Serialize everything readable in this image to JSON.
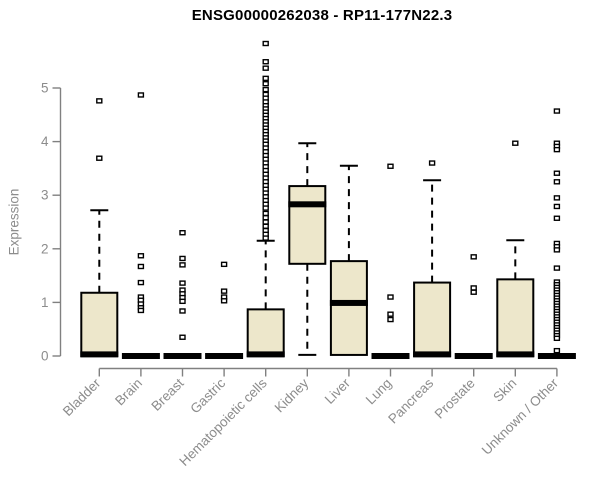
{
  "chart_data": {
    "type": "boxplot",
    "title": "ENSG00000262038 - RP11-177N22.3",
    "ylabel": "Expression",
    "yticks": [
      0,
      1,
      2,
      3,
      4,
      5
    ],
    "ylim": [
      0,
      5.9
    ],
    "grid": false,
    "legend": "none",
    "categories": [
      "Bladder",
      "Brain",
      "Breast",
      "Gastric",
      "Hematopoietic cells",
      "Kidney",
      "Liver",
      "Lung",
      "Pancreas",
      "Prostate",
      "Skin",
      "Unknown / Other"
    ],
    "boxes": [
      {
        "category": "Bladder",
        "whisker_low": 0,
        "q1": 0,
        "median": 0.03,
        "q3": 1.18,
        "whisker_high": 2.72,
        "outliers": [
          3.69,
          4.76
        ]
      },
      {
        "category": "Brain",
        "whisker_low": 0,
        "q1": 0,
        "median": 0,
        "q3": 0,
        "whisker_high": 0,
        "outliers": [
          4.87,
          1.87,
          1.67,
          1.37,
          1.1,
          1.04,
          0.97,
          0.9,
          0.85
        ]
      },
      {
        "category": "Breast",
        "whisker_low": 0,
        "q1": 0,
        "median": 0,
        "q3": 0,
        "whisker_high": 0,
        "outliers": [
          2.3,
          1.82,
          1.7,
          1.36,
          1.23,
          1.16,
          1.09,
          1.02,
          0.84,
          0.35
        ]
      },
      {
        "category": "Gastric",
        "whisker_low": 0,
        "q1": 0,
        "median": 0,
        "q3": 0,
        "whisker_high": 0,
        "outliers": [
          1.71,
          1.21,
          1.1,
          1.03
        ]
      },
      {
        "category": "Hematopoietic cells",
        "whisker_low": 0,
        "q1": 0,
        "median": 0.03,
        "q3": 0.87,
        "whisker_high": 2.15,
        "outliers": [
          5.83,
          5.49,
          5.37,
          5.18,
          5.08,
          4.97,
          4.88,
          4.81,
          4.74,
          4.67,
          4.61,
          4.55,
          4.49,
          4.43,
          4.37,
          4.31,
          4.25,
          4.19,
          4.13,
          4.07,
          4.01,
          3.95,
          3.88,
          3.81,
          3.74,
          3.67,
          3.6,
          3.53,
          3.46,
          3.39,
          3.32,
          3.25,
          3.18,
          3.11,
          3.04,
          2.97,
          2.9,
          2.83,
          2.76,
          2.66,
          2.58,
          2.5,
          2.42,
          2.34,
          2.27,
          2.2
        ]
      },
      {
        "category": "Kidney",
        "whisker_low": 0.02,
        "q1": 1.72,
        "median": 2.83,
        "q3": 3.17,
        "whisker_high": 3.97,
        "outliers": []
      },
      {
        "category": "Liver",
        "whisker_low": 0.02,
        "q1": 0.02,
        "median": 0.99,
        "q3": 1.77,
        "whisker_high": 3.55,
        "outliers": []
      },
      {
        "category": "Lung",
        "whisker_low": 0,
        "q1": 0,
        "median": 0,
        "q3": 0,
        "whisker_high": 0,
        "outliers": [
          3.54,
          1.1,
          0.78,
          0.68
        ]
      },
      {
        "category": "Pancreas",
        "whisker_low": 0,
        "q1": 0,
        "median": 0.03,
        "q3": 1.37,
        "whisker_high": 3.28,
        "outliers": [
          3.6
        ]
      },
      {
        "category": "Prostate",
        "whisker_low": 0,
        "q1": 0,
        "median": 0,
        "q3": 0,
        "whisker_high": 0,
        "outliers": [
          1.85,
          1.27,
          1.19
        ]
      },
      {
        "category": "Skin",
        "whisker_low": 0,
        "q1": 0,
        "median": 0.03,
        "q3": 1.43,
        "whisker_high": 2.16,
        "outliers": [
          3.97
        ]
      },
      {
        "category": "Unknown / Other",
        "whisker_low": 0,
        "q1": 0,
        "median": 0,
        "q3": 0,
        "whisker_high": 0,
        "outliers": [
          4.57,
          3.97,
          3.91,
          3.85,
          3.41,
          3.25,
          2.95,
          2.79,
          2.57,
          2.1,
          2.04,
          1.98,
          1.64,
          1.38,
          1.33,
          1.28,
          1.23,
          1.18,
          1.13,
          1.08,
          1.03,
          0.98,
          0.93,
          0.88,
          0.83,
          0.78,
          0.73,
          0.68,
          0.63,
          0.58,
          0.53,
          0.48,
          0.43,
          0.38,
          0.33,
          0.1
        ]
      }
    ],
    "colors": {
      "box_fill": "#EDE7CB",
      "box_stroke": "#000000",
      "median": "#000000",
      "whisker": "#000000",
      "axis_line": "#808080",
      "axis_text": "#8c8c8c",
      "title_text": "#000000",
      "outlier_fill": "#ffffff"
    }
  }
}
